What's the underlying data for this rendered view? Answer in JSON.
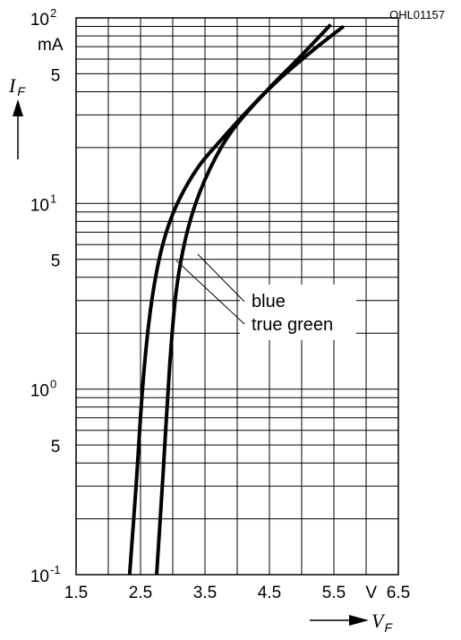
{
  "chart_data": {
    "type": "line",
    "code": "OHL01157",
    "x_axis": {
      "symbol": "V",
      "subscript": "F",
      "unit": "V",
      "scale": "linear",
      "range": [
        1.5,
        6.5
      ],
      "tick_labels": [
        "1.5",
        "2.5",
        "3.5",
        "4.5",
        "5.5",
        "6.5"
      ],
      "tick_values": [
        1.5,
        2.5,
        3.5,
        4.5,
        5.5,
        6.5
      ]
    },
    "y_axis": {
      "symbol": "I",
      "subscript": "F",
      "unit": "mA",
      "scale": "log",
      "range": [
        0.1,
        100
      ],
      "decade_labels": [
        {
          "base": "10",
          "exp": "2",
          "value": 100
        },
        {
          "base": "10",
          "exp": "1",
          "value": 10
        },
        {
          "base": "10",
          "exp": "0",
          "value": 1
        },
        {
          "base": "10",
          "exp": "-1",
          "value": 0.1
        }
      ],
      "five_labels": [
        {
          "text": "5",
          "value": 50
        },
        {
          "text": "5",
          "value": 5
        },
        {
          "text": "5",
          "value": 0.5
        }
      ]
    },
    "grid": true,
    "legend": [
      "blue",
      "true green"
    ],
    "series": [
      {
        "name": "blue",
        "x": [
          2.33,
          2.43,
          2.53,
          2.63,
          2.75,
          2.9,
          3.1,
          3.4,
          3.75,
          4.1,
          4.5,
          5.0,
          5.45
        ],
        "y": [
          0.1,
          0.3,
          1.0,
          2.3,
          4.3,
          7.0,
          10.5,
          15.8,
          22.0,
          30.0,
          42.0,
          63.0,
          92.0
        ]
      },
      {
        "name": "true green",
        "x": [
          2.75,
          2.85,
          2.95,
          3.05,
          3.2,
          3.42,
          3.75,
          4.1,
          4.6,
          5.2,
          5.65
        ],
        "y": [
          0.1,
          0.35,
          1.3,
          3.3,
          6.5,
          11.5,
          20.0,
          29.5,
          45.0,
          68.0,
          90.0
        ]
      }
    ]
  }
}
